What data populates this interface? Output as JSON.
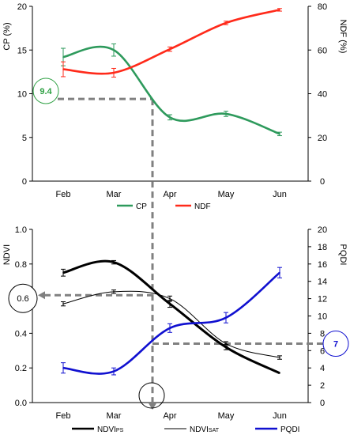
{
  "chart_data": [
    {
      "type": "line",
      "categories": [
        "Feb",
        "Mar",
        "Apr",
        "May",
        "Jun"
      ],
      "ylabel": "CP (%)",
      "ylim": [
        0,
        20
      ],
      "yticks": [
        "0",
        "5",
        "10",
        "15",
        "20"
      ],
      "y2label": "NDF (%)",
      "y2lim": [
        0,
        80
      ],
      "y2ticks": [
        "0",
        "20",
        "40",
        "60",
        "80"
      ],
      "legend_position": "bottom",
      "grid": false,
      "series": [
        {
          "name": "CP",
          "axis": "left",
          "color": "#2e9a5c",
          "values": [
            14.2,
            15.0,
            7.3,
            7.7,
            5.4
          ],
          "errors": [
            1.0,
            0.7,
            0.3,
            0.3,
            0.2
          ]
        },
        {
          "name": "NDF",
          "axis": "right",
          "color": "#ff2a1a",
          "values": [
            51.2,
            49.6,
            60.4,
            72.4,
            78.4
          ],
          "errors": [
            3.4,
            2.0,
            1.0,
            0.8,
            0.6
          ]
        }
      ],
      "annotations": [
        {
          "text": "9.4",
          "value": 9.4,
          "axis": "left",
          "color": "#2ea043"
        }
      ]
    },
    {
      "type": "line",
      "categories": [
        "Feb",
        "Mar",
        "Apr",
        "May",
        "Jun"
      ],
      "ylabel": "NDVI",
      "ylim": [
        0,
        1.0
      ],
      "yticks": [
        "0.0",
        "0.2",
        "0.4",
        "0.6",
        "0.8",
        "1.0"
      ],
      "y2label": "PQDI",
      "y2lim": [
        0,
        20
      ],
      "y2ticks": [
        "0",
        "2",
        "4",
        "6",
        "8",
        "10",
        "12",
        "14",
        "16",
        "18",
        "20"
      ],
      "legend_position": "bottom",
      "grid": false,
      "legend": [
        {
          "main": "NDVI",
          "sub": "PS",
          "key": "ndvi_ps"
        },
        {
          "main": "NDVI",
          "sub": "SAT",
          "key": "ndvi_sat"
        },
        {
          "main": "PQDI",
          "sub": "",
          "key": "pqdi"
        }
      ],
      "series": [
        {
          "key": "ndvi_ps",
          "axis": "left",
          "color": "#000000",
          "values": [
            0.75,
            0.81,
            0.57,
            0.32,
            0.17
          ],
          "errors": [
            0.02,
            0.01,
            0.02,
            0.015,
            0.0
          ]
        },
        {
          "key": "ndvi_sat",
          "axis": "left",
          "color": "#000000",
          "values": [
            0.57,
            0.64,
            0.6,
            0.34,
            0.26
          ],
          "errors": [
            0.012,
            0.01,
            0.015,
            0.012,
            0.01
          ]
        },
        {
          "key": "pqdi",
          "axis": "right",
          "color": "#1010d0",
          "values": [
            4.0,
            3.6,
            8.6,
            9.8,
            15.0
          ],
          "errors": [
            0.6,
            0.4,
            0.5,
            0.6,
            0.6
          ]
        }
      ],
      "annotations": [
        {
          "text": "0.6",
          "value": 0.62,
          "axis": "left",
          "color": "#000000"
        },
        {
          "text": "7",
          "value": 6.8,
          "axis": "right",
          "color": "#1010d0"
        }
      ]
    }
  ]
}
